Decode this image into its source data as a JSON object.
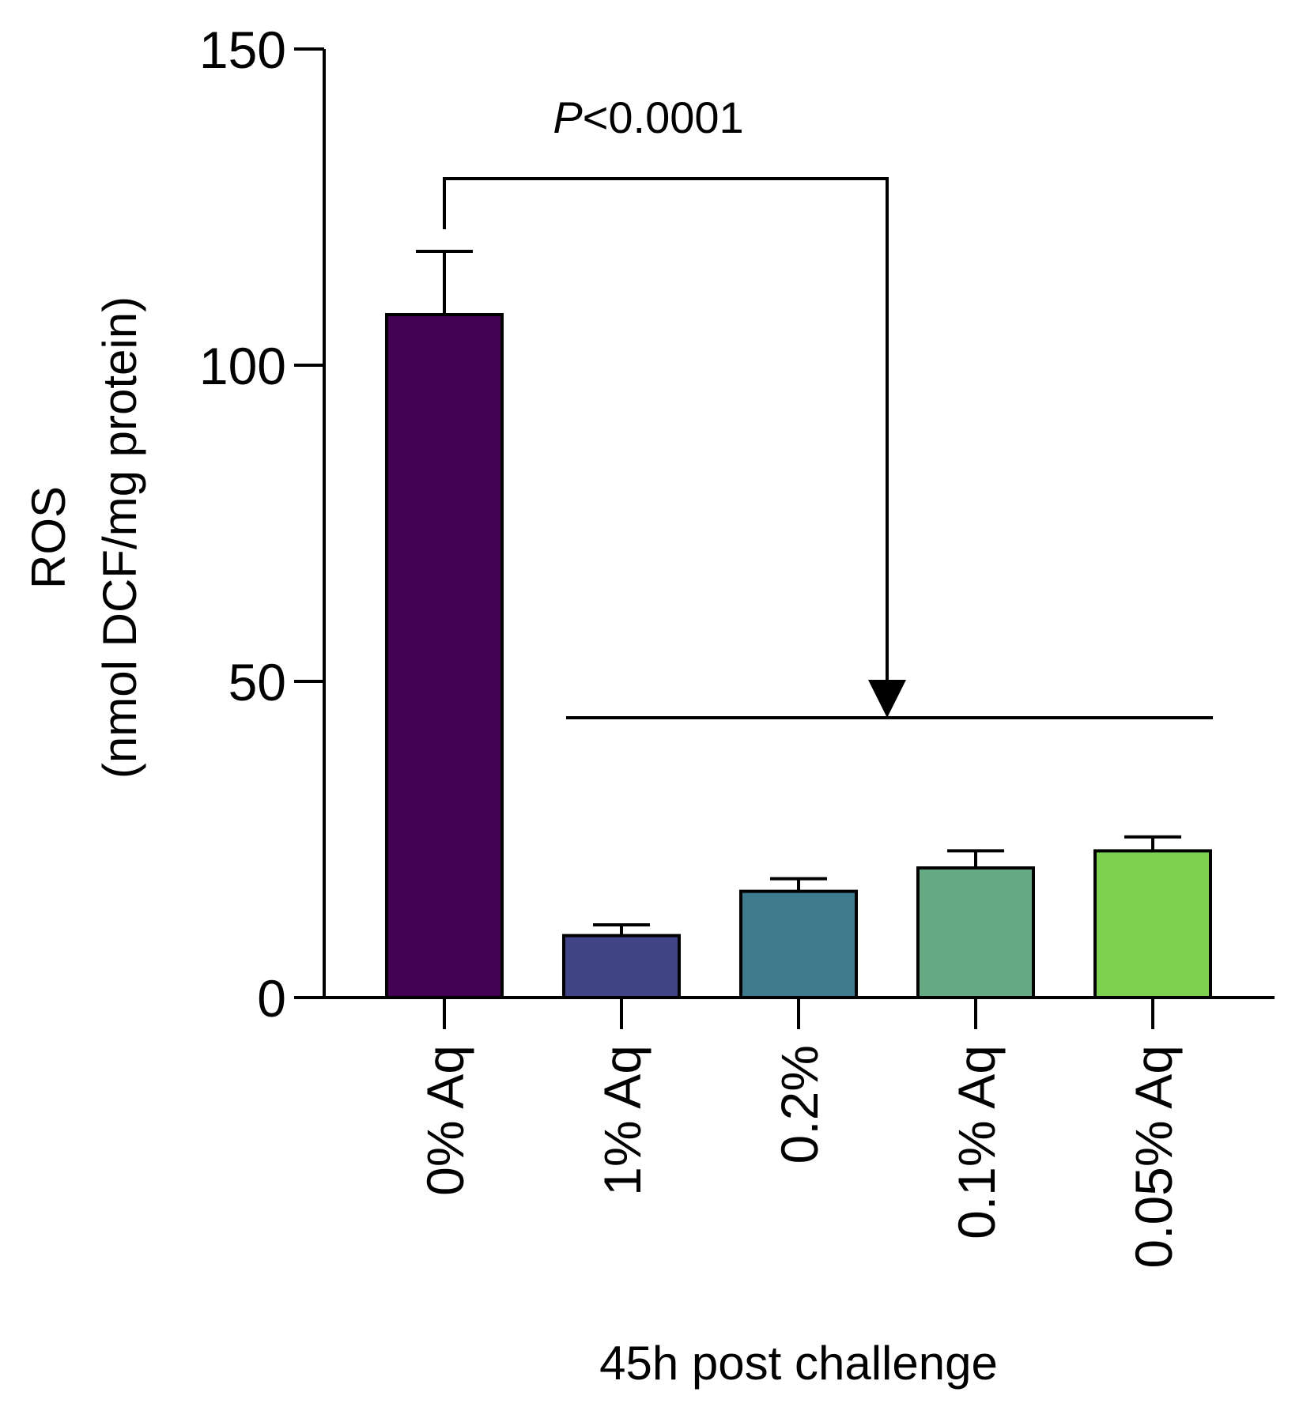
{
  "chart_data": {
    "type": "bar",
    "categories": [
      "0% Aq",
      "1% Aq",
      "0.2%",
      "0.1% Aq",
      "0.05% Aq"
    ],
    "values": [
      108,
      9.8,
      16.8,
      20.5,
      23.2
    ],
    "errors": [
      10,
      1.7,
      2,
      2.7,
      2.2
    ],
    "colors": [
      "#440154",
      "#414487",
      "#3f7b8f",
      "#64a983",
      "#7dd151"
    ],
    "ylabel_line1": "ROS",
    "ylabel_line2": "(nmol DCF/mg protein)",
    "xlabel": "45h post challenge",
    "ylim": [
      0,
      150
    ],
    "yticks": [
      0,
      50,
      100,
      150
    ],
    "annotation": {
      "p_symbol": "P",
      "p_text": "<0.0001",
      "from_category": 0,
      "to_categories": [
        1,
        4
      ]
    }
  }
}
